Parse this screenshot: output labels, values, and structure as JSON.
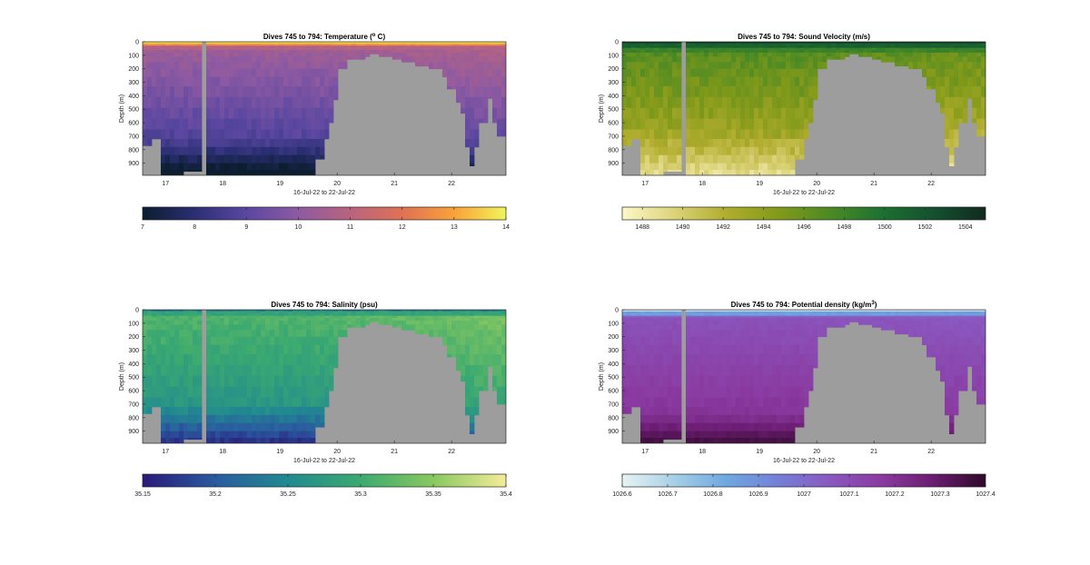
{
  "chart_data": [
    {
      "type": "heatmap",
      "variable": "temperature",
      "title": "Dives 745 to 794: Temperature (° C)",
      "title_parts": [
        "Dives 745 to 794: Temperature (",
        "o",
        " C)"
      ],
      "xlabel": "16-Jul-22 to 22-Jul-22",
      "ylabel": "Depth (m)",
      "x_ticks": [
        "17",
        "18",
        "19",
        "20",
        "21",
        "22"
      ],
      "y_ticks": [
        "0",
        "100",
        "200",
        "300",
        "400",
        "500",
        "600",
        "700",
        "800",
        "900"
      ],
      "xlim": [
        16.6,
        22.95
      ],
      "ylim": [
        990,
        0
      ],
      "colorbar": {
        "ticks": [
          "7",
          "8",
          "9",
          "10",
          "11",
          "12",
          "13",
          "14"
        ],
        "range": [
          7,
          14
        ],
        "colors": [
          "#0b1d2e",
          "#2b2f74",
          "#5a47a1",
          "#8e5aa2",
          "#b9647f",
          "#e07154",
          "#f9a13a",
          "#f0f55a"
        ]
      },
      "colormap_name": "thermal"
    },
    {
      "type": "heatmap",
      "variable": "sound_velocity",
      "title": "Dives 745 to 794: Sound Velocity (m/s)",
      "title_parts": [
        "Dives 745 to 794: Sound Velocity (m/s)",
        "",
        ""
      ],
      "xlabel": "16-Jul-22 to 22-Jul-22",
      "ylabel": "Depth (m)",
      "x_ticks": [
        "17",
        "18",
        "19",
        "20",
        "21",
        "22"
      ],
      "y_ticks": [
        "0",
        "100",
        "200",
        "300",
        "400",
        "500",
        "600",
        "700",
        "800",
        "900"
      ],
      "xlim": [
        16.6,
        22.95
      ],
      "ylim": [
        990,
        0
      ],
      "colorbar": {
        "ticks": [
          "1488",
          "1490",
          "1492",
          "1494",
          "1496",
          "1498",
          "1500",
          "1502",
          "1504"
        ],
        "range": [
          1487,
          1505
        ],
        "colors": [
          "#fdf8c8",
          "#dcd37a",
          "#b1ad2e",
          "#839a1a",
          "#4c8a24",
          "#1d7131",
          "#145030",
          "#112a1f"
        ]
      },
      "colormap_name": "speed"
    },
    {
      "type": "heatmap",
      "variable": "salinity",
      "title": "Dives 745 to 794: Salinity (psu)",
      "title_parts": [
        "Dives 745 to 794: Salinity (psu)",
        "",
        ""
      ],
      "xlabel": "16-Jul-22 to 22-Jul-22",
      "ylabel": "Depth (m)",
      "x_ticks": [
        "17",
        "18",
        "19",
        "20",
        "21",
        "22"
      ],
      "y_ticks": [
        "0",
        "100",
        "200",
        "300",
        "400",
        "500",
        "600",
        "700",
        "800",
        "900"
      ],
      "xlim": [
        16.6,
        22.95
      ],
      "ylim": [
        990,
        0
      ],
      "colorbar": {
        "ticks": [
          "35.15",
          "35.2",
          "35.25",
          "35.3",
          "35.35",
          "35.4"
        ],
        "range": [
          35.15,
          35.4
        ],
        "colors": [
          "#2a1a7a",
          "#2a5aa0",
          "#218a90",
          "#3caa70",
          "#88c860",
          "#f5ec98"
        ]
      },
      "colormap_name": "haline"
    },
    {
      "type": "heatmap",
      "variable": "potential_density",
      "title": "Dives 745 to 794: Potential density (kg/m³)",
      "title_parts": [
        "Dives 745 to 794: Potential density (kg/m",
        "3",
        ")"
      ],
      "xlabel": "16-Jul-22 to 22-Jul-22",
      "ylabel": "Depth (m)",
      "x_ticks": [
        "17",
        "18",
        "19",
        "20",
        "21",
        "22"
      ],
      "y_ticks": [
        "0",
        "100",
        "200",
        "300",
        "400",
        "500",
        "600",
        "700",
        "800",
        "900"
      ],
      "xlim": [
        16.6,
        22.95
      ],
      "ylim": [
        990,
        0
      ],
      "colorbar": {
        "ticks": [
          "1026.6",
          "1026.7",
          "1026.8",
          "1026.9",
          "1027",
          "1027.1",
          "1027.2",
          "1027.3",
          "1027.4"
        ],
        "range": [
          1026.6,
          1027.4
        ],
        "colors": [
          "#e8f3f3",
          "#a8cfe6",
          "#6ea8e0",
          "#7480d8",
          "#8a58c0",
          "#8a3aa0",
          "#6a1c70",
          "#2e0a28"
        ]
      },
      "colormap_name": "dense"
    }
  ],
  "colors": {
    "no_data": "#9d9d9d",
    "axis": "#262626"
  },
  "data_gap_x": [
    17.62,
    17.73
  ],
  "seafloor_profile": [
    {
      "x": 16.6,
      "depth": 770
    },
    {
      "x": 16.75,
      "depth": 720
    },
    {
      "x": 16.88,
      "depth": 990
    },
    {
      "x": 17.2,
      "depth": 990
    },
    {
      "x": 17.3,
      "depth": 960
    },
    {
      "x": 17.6,
      "depth": 960
    },
    {
      "x": 17.73,
      "depth": 990
    },
    {
      "x": 19.6,
      "depth": 990
    },
    {
      "x": 19.65,
      "depth": 870
    },
    {
      "x": 19.75,
      "depth": 720
    },
    {
      "x": 19.85,
      "depth": 600
    },
    {
      "x": 19.9,
      "depth": 430
    },
    {
      "x": 20.05,
      "depth": 200
    },
    {
      "x": 20.2,
      "depth": 130
    },
    {
      "x": 20.45,
      "depth": 110
    },
    {
      "x": 20.6,
      "depth": 90
    },
    {
      "x": 20.75,
      "depth": 110
    },
    {
      "x": 20.95,
      "depth": 130
    },
    {
      "x": 21.1,
      "depth": 150
    },
    {
      "x": 21.4,
      "depth": 180
    },
    {
      "x": 21.6,
      "depth": 200
    },
    {
      "x": 21.85,
      "depth": 260
    },
    {
      "x": 21.95,
      "depth": 350
    },
    {
      "x": 22.05,
      "depth": 450
    },
    {
      "x": 22.12,
      "depth": 530
    },
    {
      "x": 22.2,
      "depth": 780
    },
    {
      "x": 22.3,
      "depth": 870
    },
    {
      "x": 22.35,
      "depth": 920
    },
    {
      "x": 22.42,
      "depth": 780
    },
    {
      "x": 22.5,
      "depth": 600
    },
    {
      "x": 22.6,
      "depth": 420
    },
    {
      "x": 22.72,
      "depth": 600
    },
    {
      "x": 22.82,
      "depth": 700
    },
    {
      "x": 22.95,
      "depth": 700
    }
  ]
}
